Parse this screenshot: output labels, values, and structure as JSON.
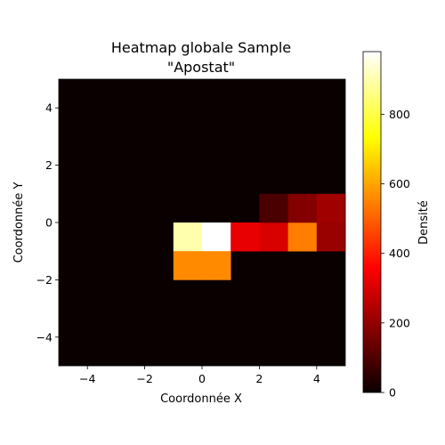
{
  "chart_data": {
    "type": "heatmap",
    "title": "Heatmap globale Sample\n\"Apostat\"",
    "title_lines": [
      "Heatmap globale Sample",
      "\"Apostat\""
    ],
    "xlabel": "Coordonnée X",
    "ylabel": "Coordonnée Y",
    "xlim": [
      -5,
      5
    ],
    "ylim": [
      -5,
      5
    ],
    "bin_size": 1,
    "x_ticks": [
      -4,
      -2,
      0,
      2,
      4
    ],
    "y_ticks": [
      -4,
      -2,
      0,
      2,
      4
    ],
    "x_tick_labels": [
      "−4",
      "−2",
      "0",
      "2",
      "4"
    ],
    "y_tick_labels": [
      "−4",
      "−2",
      "0",
      "2",
      "4"
    ],
    "colormap": "hot",
    "colorbar": {
      "label": "Densité",
      "range": [
        0,
        980
      ],
      "ticks": [
        0,
        200,
        400,
        600,
        800
      ],
      "tick_labels": [
        "0",
        "200",
        "400",
        "600",
        "800"
      ]
    },
    "background_value": 0,
    "cells": [
      {
        "x": -1,
        "y": -1,
        "value": 900
      },
      {
        "x": 0,
        "y": -1,
        "value": 980
      },
      {
        "x": 1,
        "y": -1,
        "value": 310
      },
      {
        "x": 2,
        "y": -1,
        "value": 290
      },
      {
        "x": 3,
        "y": -1,
        "value": 540
      },
      {
        "x": 4,
        "y": -1,
        "value": 200
      },
      {
        "x": 2,
        "y": 0,
        "value": 90
      },
      {
        "x": 3,
        "y": 0,
        "value": 170
      },
      {
        "x": 4,
        "y": 0,
        "value": 210
      },
      {
        "x": -1,
        "y": -2,
        "value": 560
      },
      {
        "x": 0,
        "y": -2,
        "value": 560
      }
    ]
  }
}
